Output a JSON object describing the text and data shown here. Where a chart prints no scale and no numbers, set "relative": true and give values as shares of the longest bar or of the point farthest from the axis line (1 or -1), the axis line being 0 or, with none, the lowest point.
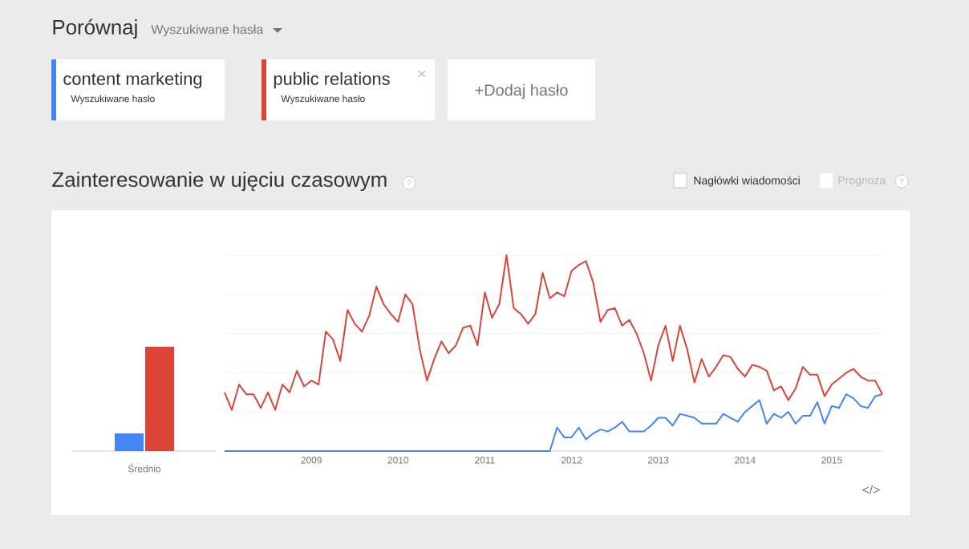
{
  "chart_data": [
    {
      "type": "bar",
      "relative": true,
      "categories": [
        "Średnio"
      ],
      "series": [
        {
          "color": "#4285f4",
          "values": [
            0.17
          ]
        },
        {
          "color": "#db4437",
          "values": [
            1
          ]
        }
      ]
    },
    {
      "type": "line",
      "title": "Zainteresowanie w ujęciu czasowym",
      "relative": true,
      "grid": "y",
      "legend": "top left",
      "x": [
        "2008-01",
        "2008-02",
        "2008-03",
        "2008-04",
        "2008-05",
        "2008-06",
        "2008-07",
        "2008-08",
        "2008-09",
        "2008-10",
        "2008-11",
        "2008-12",
        "2009-01",
        "2009-02",
        "2009-03",
        "2009-04",
        "2009-05",
        "2009-06",
        "2009-07",
        "2009-08",
        "2009-09",
        "2009-10",
        "2009-11",
        "2009-12",
        "2010-01",
        "2010-02",
        "2010-03",
        "2010-04",
        "2010-05",
        "2010-06",
        "2010-07",
        "2010-08",
        "2010-09",
        "2010-10",
        "2010-11",
        "2010-12",
        "2011-01",
        "2011-02",
        "2011-03",
        "2011-04",
        "2011-05",
        "2011-06",
        "2011-07",
        "2011-08",
        "2011-09",
        "2011-10",
        "2011-11",
        "2011-12",
        "2012-01",
        "2012-02",
        "2012-03",
        "2012-04",
        "2012-05",
        "2012-06",
        "2012-07",
        "2012-08",
        "2012-09",
        "2012-10",
        "2012-11",
        "2012-12",
        "2013-01",
        "2013-02",
        "2013-03",
        "2013-04",
        "2013-05",
        "2013-06",
        "2013-07",
        "2013-08",
        "2013-09",
        "2013-10",
        "2013-11",
        "2013-12",
        "2014-01",
        "2014-02",
        "2014-03",
        "2014-04",
        "2014-05",
        "2014-06",
        "2014-07",
        "2014-08",
        "2014-09",
        "2014-10",
        "2014-11",
        "2014-12",
        "2015-01",
        "2015-02",
        "2015-03",
        "2015-04",
        "2015-05",
        "2015-06",
        "2015-07",
        "2015-08"
      ],
      "xlim": [
        "2008-01",
        "2015-08"
      ],
      "xticks": [
        {
          "value": "2009-01",
          "label": "2009"
        },
        {
          "value": "2010-01",
          "label": "2010"
        },
        {
          "value": "2011-01",
          "label": "2011"
        },
        {
          "value": "2012-01",
          "label": "2012"
        },
        {
          "value": "2013-01",
          "label": "2013"
        },
        {
          "value": "2014-01",
          "label": "2014"
        },
        {
          "value": "2015-01",
          "label": "2015"
        }
      ],
      "series": [
        {
          "name": "content marketing",
          "color": "#4285f4",
          "values": [
            0,
            0,
            0,
            0,
            0,
            0,
            0,
            0,
            0,
            0,
            0,
            0,
            0,
            0,
            0,
            0,
            0,
            0,
            0,
            0,
            0,
            0,
            0,
            0,
            0,
            0,
            0,
            0,
            0,
            0,
            0,
            0,
            0,
            0,
            0,
            0,
            0,
            0,
            0,
            0,
            0,
            0,
            0,
            0,
            0,
            0,
            0.12,
            0.07,
            0.07,
            0.12,
            0.06,
            0.09,
            0.11,
            0.1,
            0.12,
            0.15,
            0.1,
            0.1,
            0.1,
            0.13,
            0.17,
            0.17,
            0.13,
            0.19,
            0.18,
            0.17,
            0.14,
            0.14,
            0.14,
            0.19,
            0.17,
            0.15,
            0.2,
            0.23,
            0.26,
            0.14,
            0.19,
            0.17,
            0.2,
            0.14,
            0.18,
            0.18,
            0.25,
            0.14,
            0.23,
            0.22,
            0.29,
            0.27,
            0.23,
            0.22,
            0.28,
            0.29
          ]
        },
        {
          "name": "public relations",
          "color": "#db4437",
          "values": [
            0.3,
            0.21,
            0.34,
            0.29,
            0.29,
            0.22,
            0.3,
            0.21,
            0.34,
            0.3,
            0.41,
            0.33,
            0.36,
            0.34,
            0.61,
            0.57,
            0.46,
            0.72,
            0.65,
            0.61,
            0.69,
            0.84,
            0.75,
            0.7,
            0.66,
            0.8,
            0.75,
            0.52,
            0.36,
            0.47,
            0.56,
            0.5,
            0.54,
            0.63,
            0.64,
            0.54,
            0.81,
            0.68,
            0.75,
            1.0,
            0.73,
            0.7,
            0.65,
            0.7,
            0.91,
            0.78,
            0.81,
            0.79,
            0.92,
            0.95,
            0.97,
            0.86,
            0.66,
            0.72,
            0.73,
            0.64,
            0.67,
            0.6,
            0.5,
            0.36,
            0.54,
            0.64,
            0.46,
            0.64,
            0.52,
            0.35,
            0.47,
            0.38,
            0.43,
            0.49,
            0.48,
            0.42,
            0.38,
            0.44,
            0.43,
            0.41,
            0.31,
            0.33,
            0.26,
            0.32,
            0.43,
            0.39,
            0.39,
            0.28,
            0.34,
            0.37,
            0.4,
            0.42,
            0.38,
            0.36,
            0.36,
            0.29
          ]
        }
      ],
      "annotations": [
        "Porównaj",
        "Wyszukiwane hasła",
        "Wyszukiwane hasło",
        "Wyszukiwane hasło",
        "+Dodaj hasło",
        "Nagłówki wiadomości",
        "Prognoza",
        "?",
        "?",
        "</>"
      ]
    }
  ]
}
